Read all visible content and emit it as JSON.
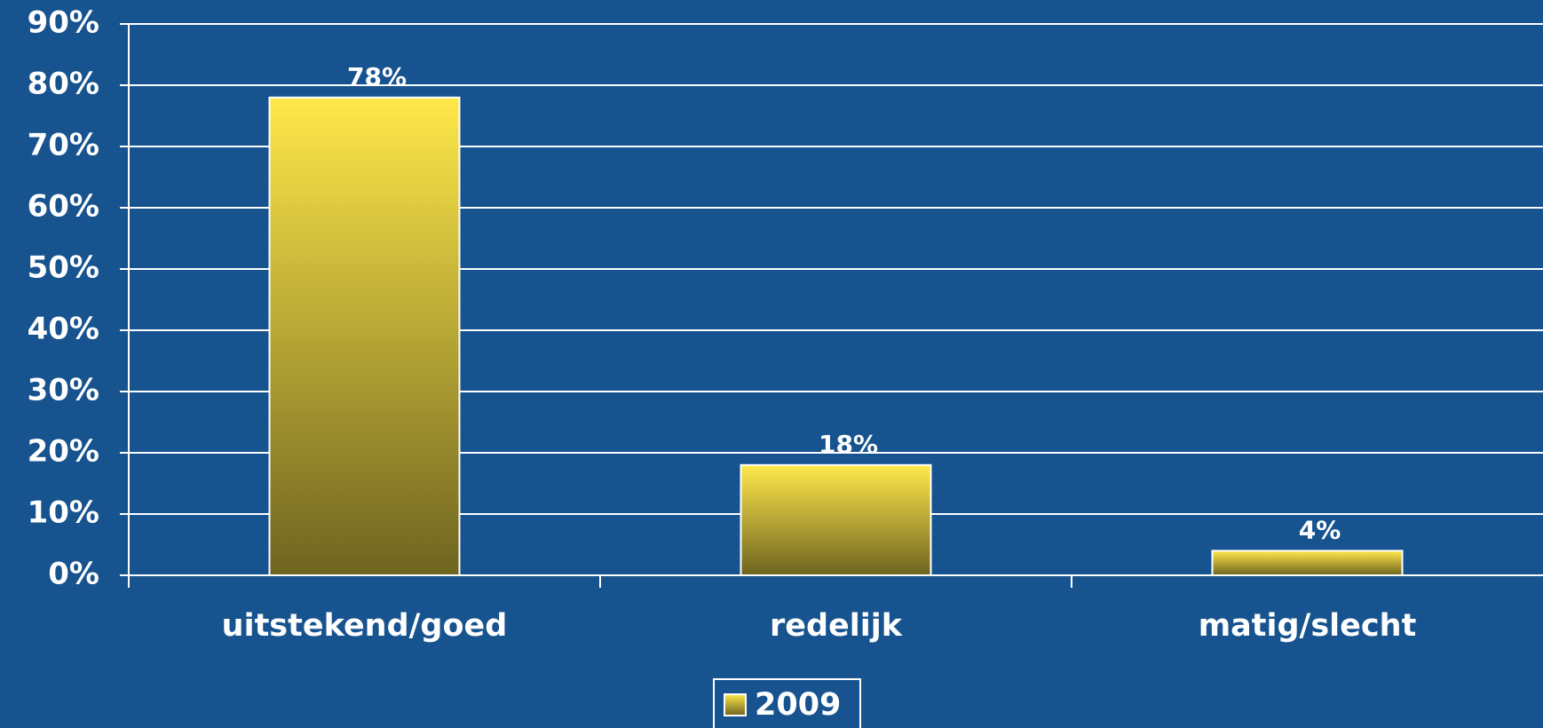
{
  "chart_data": {
    "type": "bar",
    "categories": [
      "uitstekend/goed",
      "redelijk",
      "matig/slecht"
    ],
    "series": [
      {
        "name": "2009",
        "color": "#ffe84a",
        "values": [
          78,
          18,
          4
        ],
        "value_labels": [
          "78%",
          "18%",
          "4%"
        ]
      }
    ],
    "ylim": [
      0,
      90
    ],
    "yticks": [
      {
        "value": 0,
        "label": "0%"
      },
      {
        "value": 10,
        "label": "10%"
      },
      {
        "value": 20,
        "label": "20%"
      },
      {
        "value": 30,
        "label": "30%"
      },
      {
        "value": 40,
        "label": "40%"
      },
      {
        "value": 50,
        "label": "50%"
      },
      {
        "value": 60,
        "label": "60%"
      },
      {
        "value": 70,
        "label": "70%"
      },
      {
        "value": 80,
        "label": "80%"
      },
      {
        "value": 90,
        "label": "90%"
      }
    ],
    "grid": true,
    "legend": "bottom"
  }
}
